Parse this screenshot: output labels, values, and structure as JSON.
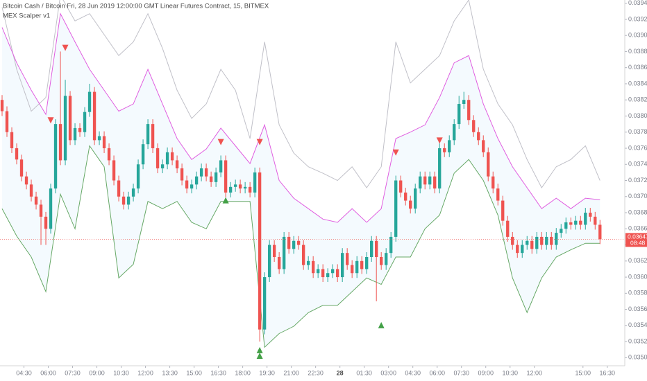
{
  "chart_data": {
    "type": "candlestick",
    "title": "Bitcoin Cash / Bitcoin Fri, 28 Jun 2019 12:00:00 GMT Linear Futures Contract, 15, BITMEX",
    "indicator": "MEX Scalper v1",
    "up_color": "#26a69a",
    "down_color": "#ef5350",
    "x": [
      0,
      1,
      2,
      3,
      4,
      5,
      6,
      7,
      8,
      9,
      10,
      11,
      12,
      13,
      14,
      15,
      16,
      17,
      18,
      19,
      20,
      21,
      22,
      23,
      24,
      25,
      26,
      27,
      28,
      29,
      30,
      31,
      32,
      33,
      34,
      35,
      36,
      37,
      38,
      39,
      40,
      41,
      42,
      43,
      44,
      45,
      46,
      47,
      48,
      49,
      50,
      51,
      52,
      53,
      54,
      55,
      56,
      57,
      58,
      59,
      60,
      61,
      62,
      63,
      64,
      65,
      66,
      67,
      68,
      69,
      70,
      71,
      72,
      73,
      74,
      75,
      76,
      77,
      78,
      79,
      80,
      81,
      82,
      83,
      84,
      85,
      86,
      87,
      88,
      89,
      90,
      91,
      92,
      93,
      94,
      95,
      96,
      97,
      98,
      99,
      100,
      101,
      102,
      103,
      104,
      105,
      106,
      107,
      108,
      109,
      110,
      111,
      112,
      113,
      114,
      115,
      116,
      117,
      118,
      119,
      120,
      121,
      122,
      123
    ],
    "open": [
      0.0382,
      0.03806,
      0.0378,
      0.0376,
      0.03746,
      0.03725,
      0.03715,
      0.037,
      0.0369,
      0.03675,
      0.0366,
      0.0371,
      0.0379,
      0.03745,
      0.03825,
      0.0377,
      0.03785,
      0.0378,
      0.03805,
      0.0383,
      0.0377,
      0.03775,
      0.0376,
      0.03745,
      0.0372,
      0.037,
      0.0369,
      0.037,
      0.0371,
      0.0374,
      0.03765,
      0.0379,
      0.0376,
      0.03735,
      0.0374,
      0.03755,
      0.03745,
      0.03735,
      0.0372,
      0.0371,
      0.03715,
      0.03725,
      0.03735,
      0.03725,
      0.03718,
      0.0373,
      0.03745,
      0.03705,
      0.03712,
      0.03715,
      0.0371,
      0.03712,
      0.03705,
      0.0373,
      0.03535,
      0.036,
      0.0364,
      0.03625,
      0.0361,
      0.0365,
      0.03635,
      0.03645,
      0.0364,
      0.03615,
      0.0362,
      0.03605,
      0.0361,
      0.036,
      0.03605,
      0.0361,
      0.036,
      0.0363,
      0.03615,
      0.03605,
      0.0362,
      0.0361,
      0.03625,
      0.03645,
      0.03625,
      0.03615,
      0.0363,
      0.0365,
      0.0372,
      0.03705,
      0.03695,
      0.03685,
      0.0371,
      0.03725,
      0.03715,
      0.03725,
      0.0371,
      0.0376,
      0.03755,
      0.0377,
      0.0379,
      0.03815,
      0.0382,
      0.03795,
      0.0378,
      0.0377,
      0.03755,
      0.03725,
      0.0371,
      0.03695,
      0.0367,
      0.0365,
      0.0364,
      0.0363,
      0.0364,
      0.03645,
      0.03635,
      0.0365,
      0.0364,
      0.0365,
      0.0364,
      0.03655,
      0.0366,
      0.03668,
      0.03665,
      0.0367,
      0.03665,
      0.0368,
      0.03675,
      0.03665
    ],
    "high": [
      0.03826,
      0.03812,
      0.03786,
      0.03766,
      0.03752,
      0.03731,
      0.03721,
      0.03706,
      0.03696,
      0.03681,
      0.03716,
      0.03796,
      0.0388,
      0.03845,
      0.03831,
      0.03791,
      0.03791,
      0.03811,
      0.0384,
      0.03836,
      0.03781,
      0.03781,
      0.03766,
      0.03751,
      0.03726,
      0.03706,
      0.03706,
      0.03716,
      0.03746,
      0.03771,
      0.03796,
      0.03796,
      0.03766,
      0.03746,
      0.03761,
      0.03761,
      0.03751,
      0.03741,
      0.03726,
      0.03721,
      0.03731,
      0.03741,
      0.03741,
      0.03731,
      0.03736,
      0.03751,
      0.03751,
      0.03718,
      0.03721,
      0.03721,
      0.03718,
      0.03718,
      0.03736,
      0.03736,
      0.03606,
      0.03646,
      0.03646,
      0.03631,
      0.03656,
      0.03656,
      0.03651,
      0.03651,
      0.03646,
      0.03626,
      0.03626,
      0.03616,
      0.03616,
      0.03611,
      0.03616,
      0.03616,
      0.03636,
      0.03636,
      0.03621,
      0.03626,
      0.03626,
      0.03631,
      0.03651,
      0.03651,
      0.03631,
      0.03636,
      0.03656,
      0.03726,
      0.03726,
      0.03711,
      0.03701,
      0.03716,
      0.03731,
      0.03731,
      0.03731,
      0.03731,
      0.03766,
      0.03766,
      0.03776,
      0.03796,
      0.03825,
      0.0383,
      0.03826,
      0.03801,
      0.03786,
      0.03776,
      0.03761,
      0.03731,
      0.03716,
      0.03701,
      0.03676,
      0.03656,
      0.03646,
      0.03646,
      0.03651,
      0.03651,
      0.03656,
      0.03656,
      0.03656,
      0.03656,
      0.03661,
      0.03666,
      0.03674,
      0.03674,
      0.03676,
      0.03676,
      0.03686,
      0.03686,
      0.03681,
      0.03671
    ],
    "low": [
      0.038,
      0.03774,
      0.03754,
      0.0374,
      0.03719,
      0.03709,
      0.03694,
      0.03684,
      0.0364,
      0.0364,
      0.03654,
      0.03704,
      0.03739,
      0.03739,
      0.03764,
      0.03764,
      0.03774,
      0.03774,
      0.03799,
      0.03764,
      0.03764,
      0.03754,
      0.03739,
      0.03714,
      0.03694,
      0.03684,
      0.03684,
      0.03694,
      0.03704,
      0.03734,
      0.03759,
      0.03754,
      0.03729,
      0.03729,
      0.03734,
      0.03739,
      0.03729,
      0.03714,
      0.03704,
      0.03704,
      0.03709,
      0.03719,
      0.03719,
      0.03712,
      0.03712,
      0.03724,
      0.03699,
      0.03699,
      0.03706,
      0.03704,
      0.03704,
      0.03699,
      0.03699,
      0.0352,
      0.03529,
      0.03594,
      0.03619,
      0.03604,
      0.03604,
      0.03629,
      0.03629,
      0.03634,
      0.03609,
      0.03609,
      0.03599,
      0.03599,
      0.03594,
      0.03594,
      0.03599,
      0.03594,
      0.03594,
      0.03609,
      0.03599,
      0.03599,
      0.03604,
      0.03604,
      0.03619,
      0.0357,
      0.03609,
      0.03609,
      0.03624,
      0.03644,
      0.03699,
      0.03689,
      0.03679,
      0.03679,
      0.03704,
      0.03709,
      0.03709,
      0.03704,
      0.03704,
      0.03749,
      0.03749,
      0.03764,
      0.03784,
      0.03809,
      0.03789,
      0.03774,
      0.03764,
      0.03749,
      0.03719,
      0.03704,
      0.03689,
      0.03664,
      0.03644,
      0.03634,
      0.03624,
      0.03624,
      0.03634,
      0.03629,
      0.03629,
      0.03634,
      0.03634,
      0.03634,
      0.03634,
      0.03649,
      0.03654,
      0.03659,
      0.03659,
      0.03659,
      0.03659,
      0.03669,
      0.03659,
      0.03641
    ],
    "close": [
      0.03806,
      0.0378,
      0.0376,
      0.03746,
      0.03725,
      0.03715,
      0.037,
      0.0369,
      0.03675,
      0.0366,
      0.0371,
      0.0379,
      0.03745,
      0.03825,
      0.0377,
      0.03785,
      0.0378,
      0.03805,
      0.0383,
      0.0377,
      0.03775,
      0.0376,
      0.03745,
      0.0372,
      0.037,
      0.0369,
      0.037,
      0.0371,
      0.0374,
      0.03765,
      0.0379,
      0.0376,
      0.03735,
      0.0374,
      0.03755,
      0.03745,
      0.03735,
      0.0372,
      0.0371,
      0.03715,
      0.03725,
      0.03735,
      0.03725,
      0.03718,
      0.0373,
      0.03745,
      0.03705,
      0.03712,
      0.03715,
      0.0371,
      0.03712,
      0.03705,
      0.0373,
      0.03535,
      0.036,
      0.0364,
      0.03625,
      0.0361,
      0.0365,
      0.03635,
      0.03645,
      0.0364,
      0.03615,
      0.0362,
      0.03605,
      0.0361,
      0.036,
      0.03605,
      0.0361,
      0.036,
      0.0363,
      0.03615,
      0.03605,
      0.0362,
      0.0361,
      0.03625,
      0.03645,
      0.03625,
      0.03615,
      0.0363,
      0.0365,
      0.0372,
      0.03705,
      0.03695,
      0.03685,
      0.0371,
      0.03725,
      0.03715,
      0.03725,
      0.0371,
      0.0376,
      0.03755,
      0.0377,
      0.0379,
      0.03815,
      0.0382,
      0.03795,
      0.0378,
      0.0377,
      0.03755,
      0.03725,
      0.0371,
      0.03695,
      0.0367,
      0.0365,
      0.0364,
      0.0363,
      0.0364,
      0.03645,
      0.03635,
      0.0365,
      0.0364,
      0.0365,
      0.0364,
      0.03655,
      0.0366,
      0.03668,
      0.03665,
      0.0367,
      0.03665,
      0.0368,
      0.03675,
      0.03665,
      0.03647
    ],
    "band_x": [
      0,
      3,
      6,
      9,
      12,
      15,
      18,
      21,
      24,
      27,
      30,
      33,
      36,
      39,
      42,
      45,
      48,
      51,
      54,
      57,
      60,
      63,
      66,
      69,
      72,
      75,
      78,
      81,
      84,
      87,
      90,
      93,
      96,
      99,
      102,
      105,
      108,
      111,
      114,
      117,
      120,
      123
    ],
    "band_fill": "rgba(33,150,243,0.05)",
    "bands": [
      {
        "color": "#c0c0c8",
        "values": [
          0.03935,
          0.03858,
          0.03806,
          0.03823,
          0.0395,
          0.03918,
          0.03927,
          0.03901,
          0.03875,
          0.03892,
          0.03927,
          0.03884,
          0.03832,
          0.03797,
          0.03815,
          0.03858,
          0.03832,
          0.03772,
          0.03892,
          0.03789,
          0.03754,
          0.03737,
          0.03729,
          0.0372,
          0.03737,
          0.03711,
          0.03737,
          0.03892,
          0.03841,
          0.03858,
          0.03875,
          0.03918,
          0.03944,
          0.03858,
          0.03815,
          0.03789,
          0.03746,
          0.03711,
          0.03737,
          0.03746,
          0.03763,
          0.0372
        ]
      },
      {
        "color": "#e05ee0",
        "values": [
          0.0391,
          0.03866,
          0.03832,
          0.03802,
          0.03927,
          0.03892,
          0.03858,
          0.03832,
          0.03806,
          0.03815,
          0.03858,
          0.03815,
          0.03772,
          0.03746,
          0.03759,
          0.03785,
          0.03763,
          0.03741,
          0.03789,
          0.0372,
          0.03698,
          0.03685,
          0.03672,
          0.03668,
          0.03685,
          0.03668,
          0.03685,
          0.03772,
          0.0378,
          0.03789,
          0.03823,
          0.03866,
          0.03875,
          0.03815,
          0.03772,
          0.03737,
          0.03711,
          0.03685,
          0.03698,
          0.03685,
          0.03698,
          0.03696
        ]
      },
      {
        "color": "#66a866",
        "values": [
          0.03685,
          0.03651,
          0.03625,
          0.03582,
          0.03703,
          0.0366,
          0.03763,
          0.03737,
          0.03599,
          0.03616,
          0.03694,
          0.03685,
          0.03694,
          0.03668,
          0.0366,
          0.03694,
          0.03694,
          0.03694,
          0.03513,
          0.0353,
          0.03539,
          0.03556,
          0.03565,
          0.03565,
          0.03582,
          0.03599,
          0.03591,
          0.03625,
          0.03625,
          0.0366,
          0.03677,
          0.03729,
          0.03746,
          0.0372,
          0.03677,
          0.03599,
          0.03556,
          0.03599,
          0.03625,
          0.03634,
          0.03642,
          0.03642
        ]
      }
    ],
    "signals": {
      "sell": {
        "color": "#ef5350",
        "x": [
          10,
          13,
          45,
          53,
          81,
          90
        ],
        "y": [
          0.03795,
          0.03885,
          0.03768,
          0.03768,
          0.03755,
          0.0377
        ]
      },
      "buy": {
        "color": "#43a047",
        "x": [
          46,
          53,
          53,
          78
        ],
        "y": [
          0.03695,
          0.03509,
          0.03502,
          0.0354
        ]
      }
    },
    "price_tag": {
      "label": "0.03647",
      "time": "08:48",
      "color": "#ef5350"
    },
    "xlim": [
      -0.43,
      128.1
    ],
    "ylim": [
      0.0349,
      0.03944
    ],
    "xticks": [
      {
        "value": 4.5,
        "label": "04:30"
      },
      {
        "value": 9.5,
        "label": "06:00"
      },
      {
        "value": 14.5,
        "label": "07:30"
      },
      {
        "value": 19.5,
        "label": "09:00"
      },
      {
        "value": 24.5,
        "label": "10:30"
      },
      {
        "value": 29.5,
        "label": "12:00"
      },
      {
        "value": 34.5,
        "label": "13:30"
      },
      {
        "value": 39.5,
        "label": "15:00"
      },
      {
        "value": 44.5,
        "label": "16:30"
      },
      {
        "value": 49.5,
        "label": "18:00"
      },
      {
        "value": 54.5,
        "label": "19:30"
      },
      {
        "value": 59.5,
        "label": "21:00"
      },
      {
        "value": 64.5,
        "label": "22:30"
      },
      {
        "value": 69.5,
        "label": "28"
      },
      {
        "value": 74.5,
        "label": "01:30"
      },
      {
        "value": 79.5,
        "label": "03:00"
      },
      {
        "value": 84.5,
        "label": "04:30"
      },
      {
        "value": 89.5,
        "label": "06:00"
      },
      {
        "value": 94.5,
        "label": "07:30"
      },
      {
        "value": 99.5,
        "label": "09:00"
      },
      {
        "value": 104.5,
        "label": "10:30"
      },
      {
        "value": 109.5,
        "label": "12:00"
      },
      {
        "value": 119.5,
        "label": "15:00"
      },
      {
        "value": 124.5,
        "label": "16:30"
      }
    ],
    "yticks": [
      {
        "value": 0.035,
        "label": "0.03500"
      },
      {
        "value": 0.0352,
        "label": "0.03520"
      },
      {
        "value": 0.0354,
        "label": "0.03540"
      },
      {
        "value": 0.0356,
        "label": "0.03560"
      },
      {
        "value": 0.0358,
        "label": "0.03580"
      },
      {
        "value": 0.036,
        "label": "0.03600"
      },
      {
        "value": 0.0362,
        "label": "0.03620"
      },
      {
        "value": 0.0364,
        "label": "0.03640"
      },
      {
        "value": 0.0366,
        "label": "0.03660"
      },
      {
        "value": 0.0368,
        "label": "0.03680"
      },
      {
        "value": 0.037,
        "label": "0.03700"
      },
      {
        "value": 0.0372,
        "label": "0.03720"
      },
      {
        "value": 0.0374,
        "label": "0.03740"
      },
      {
        "value": 0.0376,
        "label": "0.03760"
      },
      {
        "value": 0.0378,
        "label": "0.03780"
      },
      {
        "value": 0.038,
        "label": "0.03800"
      },
      {
        "value": 0.0382,
        "label": "0.03820"
      },
      {
        "value": 0.0384,
        "label": "0.03840"
      },
      {
        "value": 0.0386,
        "label": "0.03860"
      },
      {
        "value": 0.0388,
        "label": "0.03880"
      },
      {
        "value": 0.039,
        "label": "0.03900"
      },
      {
        "value": 0.0392,
        "label": "0.03920"
      },
      {
        "value": 0.0394,
        "label": "0.03940"
      }
    ]
  }
}
